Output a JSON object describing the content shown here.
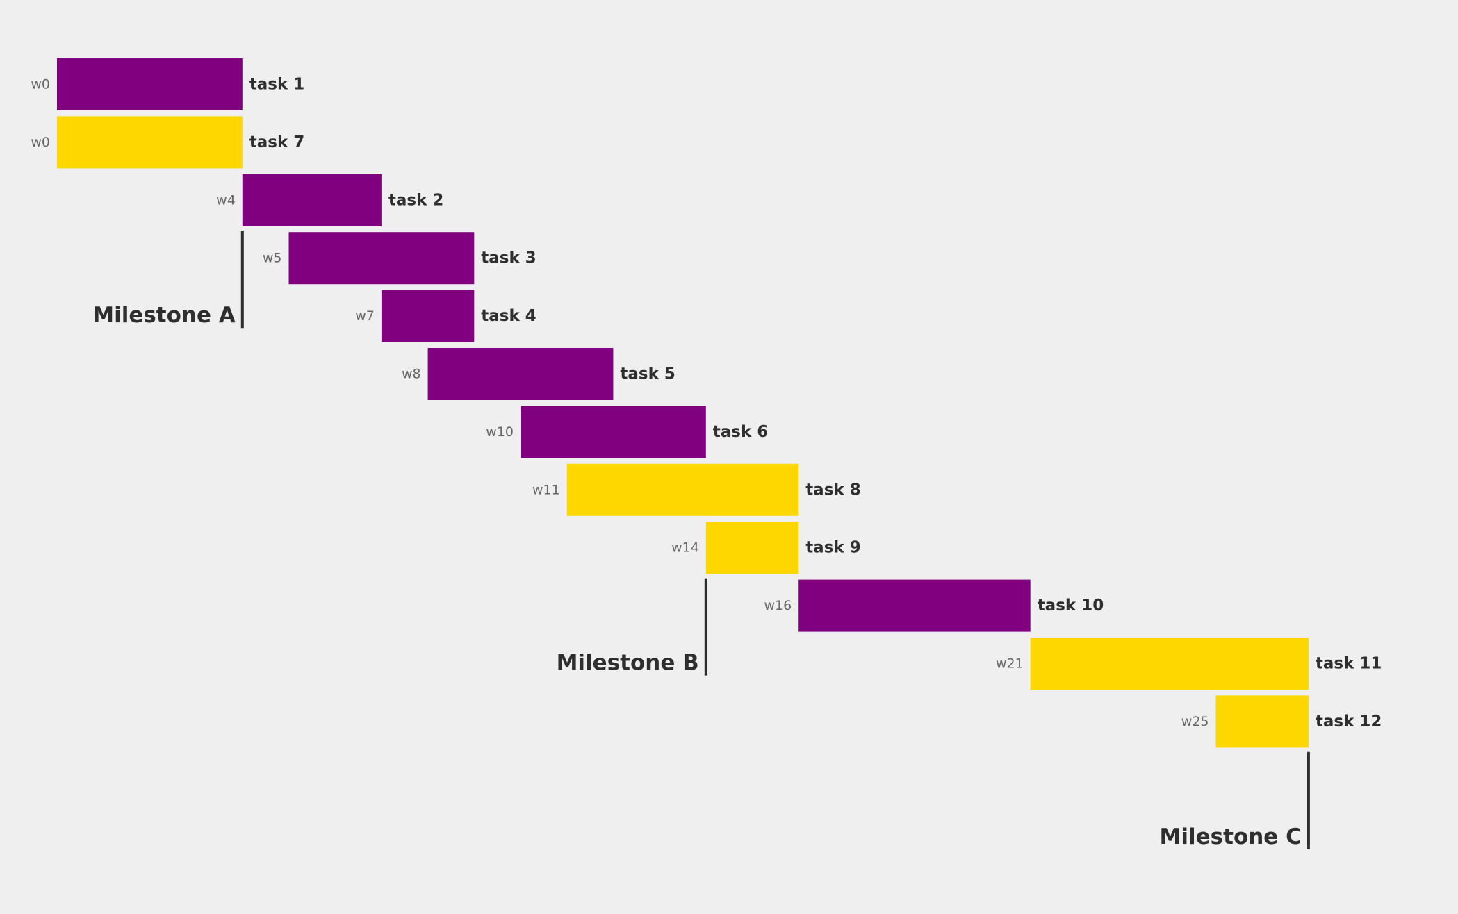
{
  "chart_data": {
    "type": "gantt",
    "unit": "week",
    "colors": {
      "purple": "#800080",
      "yellow": "#ffd700"
    },
    "tasks": [
      {
        "name": "task 1",
        "start": 0,
        "end": 4,
        "start_label": "w0",
        "color": "purple"
      },
      {
        "name": "task 7",
        "start": 0,
        "end": 4,
        "start_label": "w0",
        "color": "yellow"
      },
      {
        "name": "task 2",
        "start": 4,
        "end": 7,
        "start_label": "w4",
        "color": "purple"
      },
      {
        "name": "task 3",
        "start": 5,
        "end": 9,
        "start_label": "w5",
        "color": "purple"
      },
      {
        "name": "task 4",
        "start": 7,
        "end": 9,
        "start_label": "w7",
        "color": "purple"
      },
      {
        "name": "task 5",
        "start": 8,
        "end": 12,
        "start_label": "w8",
        "color": "purple"
      },
      {
        "name": "task 6",
        "start": 10,
        "end": 14,
        "start_label": "w10",
        "color": "purple"
      },
      {
        "name": "task 8",
        "start": 11,
        "end": 16,
        "start_label": "w11",
        "color": "yellow"
      },
      {
        "name": "task 9",
        "start": 14,
        "end": 16,
        "start_label": "w14",
        "color": "yellow"
      },
      {
        "name": "task 10",
        "start": 16,
        "end": 21,
        "start_label": "w16",
        "color": "purple"
      },
      {
        "name": "task 11",
        "start": 21,
        "end": 27,
        "start_label": "w21",
        "color": "yellow"
      },
      {
        "name": "task 12",
        "start": 25,
        "end": 27,
        "start_label": "w25",
        "color": "yellow"
      }
    ],
    "milestones": [
      {
        "name": "Milestone A",
        "week": 4,
        "after_task_index": 2
      },
      {
        "name": "Milestone B",
        "week": 14,
        "after_task_index": 8
      },
      {
        "name": "Milestone C",
        "week": 27,
        "after_task_index": 11
      }
    ]
  }
}
